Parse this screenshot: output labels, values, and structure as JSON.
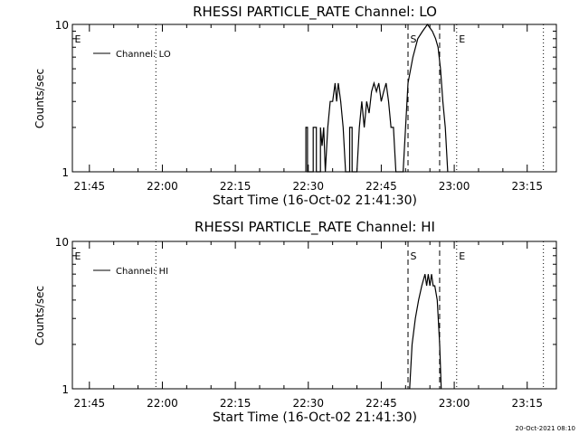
{
  "timestamp": "20-Oct-2021 08:10",
  "chart_data": [
    {
      "type": "line",
      "title": "RHESSI PARTICLE_RATE Channel: LO",
      "xlabel": "Start Time (16-Oct-02 21:41:30)",
      "ylabel": "Counts/sec",
      "y_scale": "log",
      "ylim": [
        1,
        10
      ],
      "y_ticks": [
        "1",
        "10"
      ],
      "xlim": [
        "21:41:30",
        "23:21:00"
      ],
      "x_ticks": [
        "21:45",
        "22:00",
        "22:15",
        "22:30",
        "22:45",
        "23:00",
        "23:15"
      ],
      "legend": {
        "placement": "top-left",
        "entries": [
          "Channel: LO"
        ]
      },
      "markers": [
        {
          "label": "E",
          "time": "21:41:30",
          "style": "dotted"
        },
        {
          "label": "",
          "time": "21:58:40",
          "style": "dotted"
        },
        {
          "label": "S",
          "time": "22:50:30",
          "style": "dashed"
        },
        {
          "label": "",
          "time": "22:57:00",
          "style": "dashed"
        },
        {
          "label": "E",
          "time": "23:00:30",
          "style": "dotted"
        },
        {
          "label": "",
          "time": "23:18:20",
          "style": "dotted"
        }
      ],
      "series": [
        {
          "name": "Channel: LO",
          "points": [
            [
              "22:29:30",
              1
            ],
            [
              "22:29:30",
              2
            ],
            [
              "22:29:50",
              2
            ],
            [
              "22:29:50",
              1
            ],
            [
              "22:31:00",
              1
            ],
            [
              "22:31:00",
              2
            ],
            [
              "22:31:40",
              2
            ],
            [
              "22:31:40",
              1
            ],
            [
              "22:32:30",
              1
            ],
            [
              "22:32:30",
              2
            ],
            [
              "22:32:50",
              1.5
            ],
            [
              "22:33:10",
              2
            ],
            [
              "22:33:30",
              1
            ],
            [
              "22:34:00",
              2
            ],
            [
              "22:34:30",
              3
            ],
            [
              "22:35:00",
              3
            ],
            [
              "22:35:30",
              4
            ],
            [
              "22:35:50",
              3
            ],
            [
              "22:36:10",
              4
            ],
            [
              "22:36:40",
              3
            ],
            [
              "22:37:10",
              2
            ],
            [
              "22:37:40",
              1
            ],
            [
              "22:38:30",
              1
            ],
            [
              "22:38:30",
              2
            ],
            [
              "22:39:00",
              2
            ],
            [
              "22:39:00",
              1
            ],
            [
              "22:40:00",
              1
            ],
            [
              "22:40:30",
              2
            ],
            [
              "22:41:00",
              3
            ],
            [
              "22:41:30",
              2
            ],
            [
              "22:42:00",
              3
            ],
            [
              "22:42:30",
              2.5
            ],
            [
              "22:43:00",
              3.5
            ],
            [
              "22:43:30",
              4
            ],
            [
              "22:44:00",
              3.5
            ],
            [
              "22:44:30",
              4
            ],
            [
              "22:45:00",
              3
            ],
            [
              "22:45:30",
              3.5
            ],
            [
              "22:46:00",
              4
            ],
            [
              "22:46:30",
              3
            ],
            [
              "22:47:00",
              2
            ],
            [
              "22:47:30",
              2
            ],
            [
              "22:48:00",
              1
            ],
            [
              "22:49:00",
              1
            ],
            [
              "22:49:30",
              1
            ],
            [
              "22:50:30",
              4
            ],
            [
              "22:51:30",
              6
            ],
            [
              "22:52:30",
              8
            ],
            [
              "22:53:30",
              9
            ],
            [
              "22:54:30",
              10
            ],
            [
              "22:55:30",
              9
            ],
            [
              "22:56:10",
              8
            ],
            [
              "22:56:40",
              7
            ],
            [
              "22:57:10",
              5
            ],
            [
              "22:57:40",
              3
            ],
            [
              "22:58:10",
              2
            ],
            [
              "22:58:40",
              1
            ]
          ]
        }
      ]
    },
    {
      "type": "line",
      "title": "RHESSI PARTICLE_RATE Channel: HI",
      "xlabel": "Start Time (16-Oct-02 21:41:30)",
      "ylabel": "Counts/sec",
      "y_scale": "log",
      "ylim": [
        1,
        10
      ],
      "y_ticks": [
        "1",
        "10"
      ],
      "xlim": [
        "21:41:30",
        "23:21:00"
      ],
      "x_ticks": [
        "21:45",
        "22:00",
        "22:15",
        "22:30",
        "22:45",
        "23:00",
        "23:15"
      ],
      "legend": {
        "placement": "top-left",
        "entries": [
          "Channel: HI"
        ]
      },
      "markers": [
        {
          "label": "E",
          "time": "21:41:30",
          "style": "dotted"
        },
        {
          "label": "",
          "time": "21:58:40",
          "style": "dotted"
        },
        {
          "label": "S",
          "time": "22:50:30",
          "style": "dashed"
        },
        {
          "label": "",
          "time": "22:57:00",
          "style": "dashed"
        },
        {
          "label": "E",
          "time": "23:00:30",
          "style": "dotted"
        },
        {
          "label": "",
          "time": "23:18:20",
          "style": "dotted"
        }
      ],
      "series": [
        {
          "name": "Channel: HI",
          "points": [
            [
              "22:50:50",
              1
            ],
            [
              "22:51:20",
              2
            ],
            [
              "22:52:00",
              3
            ],
            [
              "22:52:40",
              4
            ],
            [
              "22:53:20",
              5
            ],
            [
              "22:54:00",
              6
            ],
            [
              "22:54:20",
              5
            ],
            [
              "22:54:40",
              6
            ],
            [
              "22:55:00",
              5
            ],
            [
              "22:55:20",
              6
            ],
            [
              "22:55:40",
              5
            ],
            [
              "22:56:00",
              5
            ],
            [
              "22:56:30",
              4
            ],
            [
              "22:57:00",
              2
            ],
            [
              "22:57:20",
              1
            ]
          ]
        }
      ]
    }
  ]
}
